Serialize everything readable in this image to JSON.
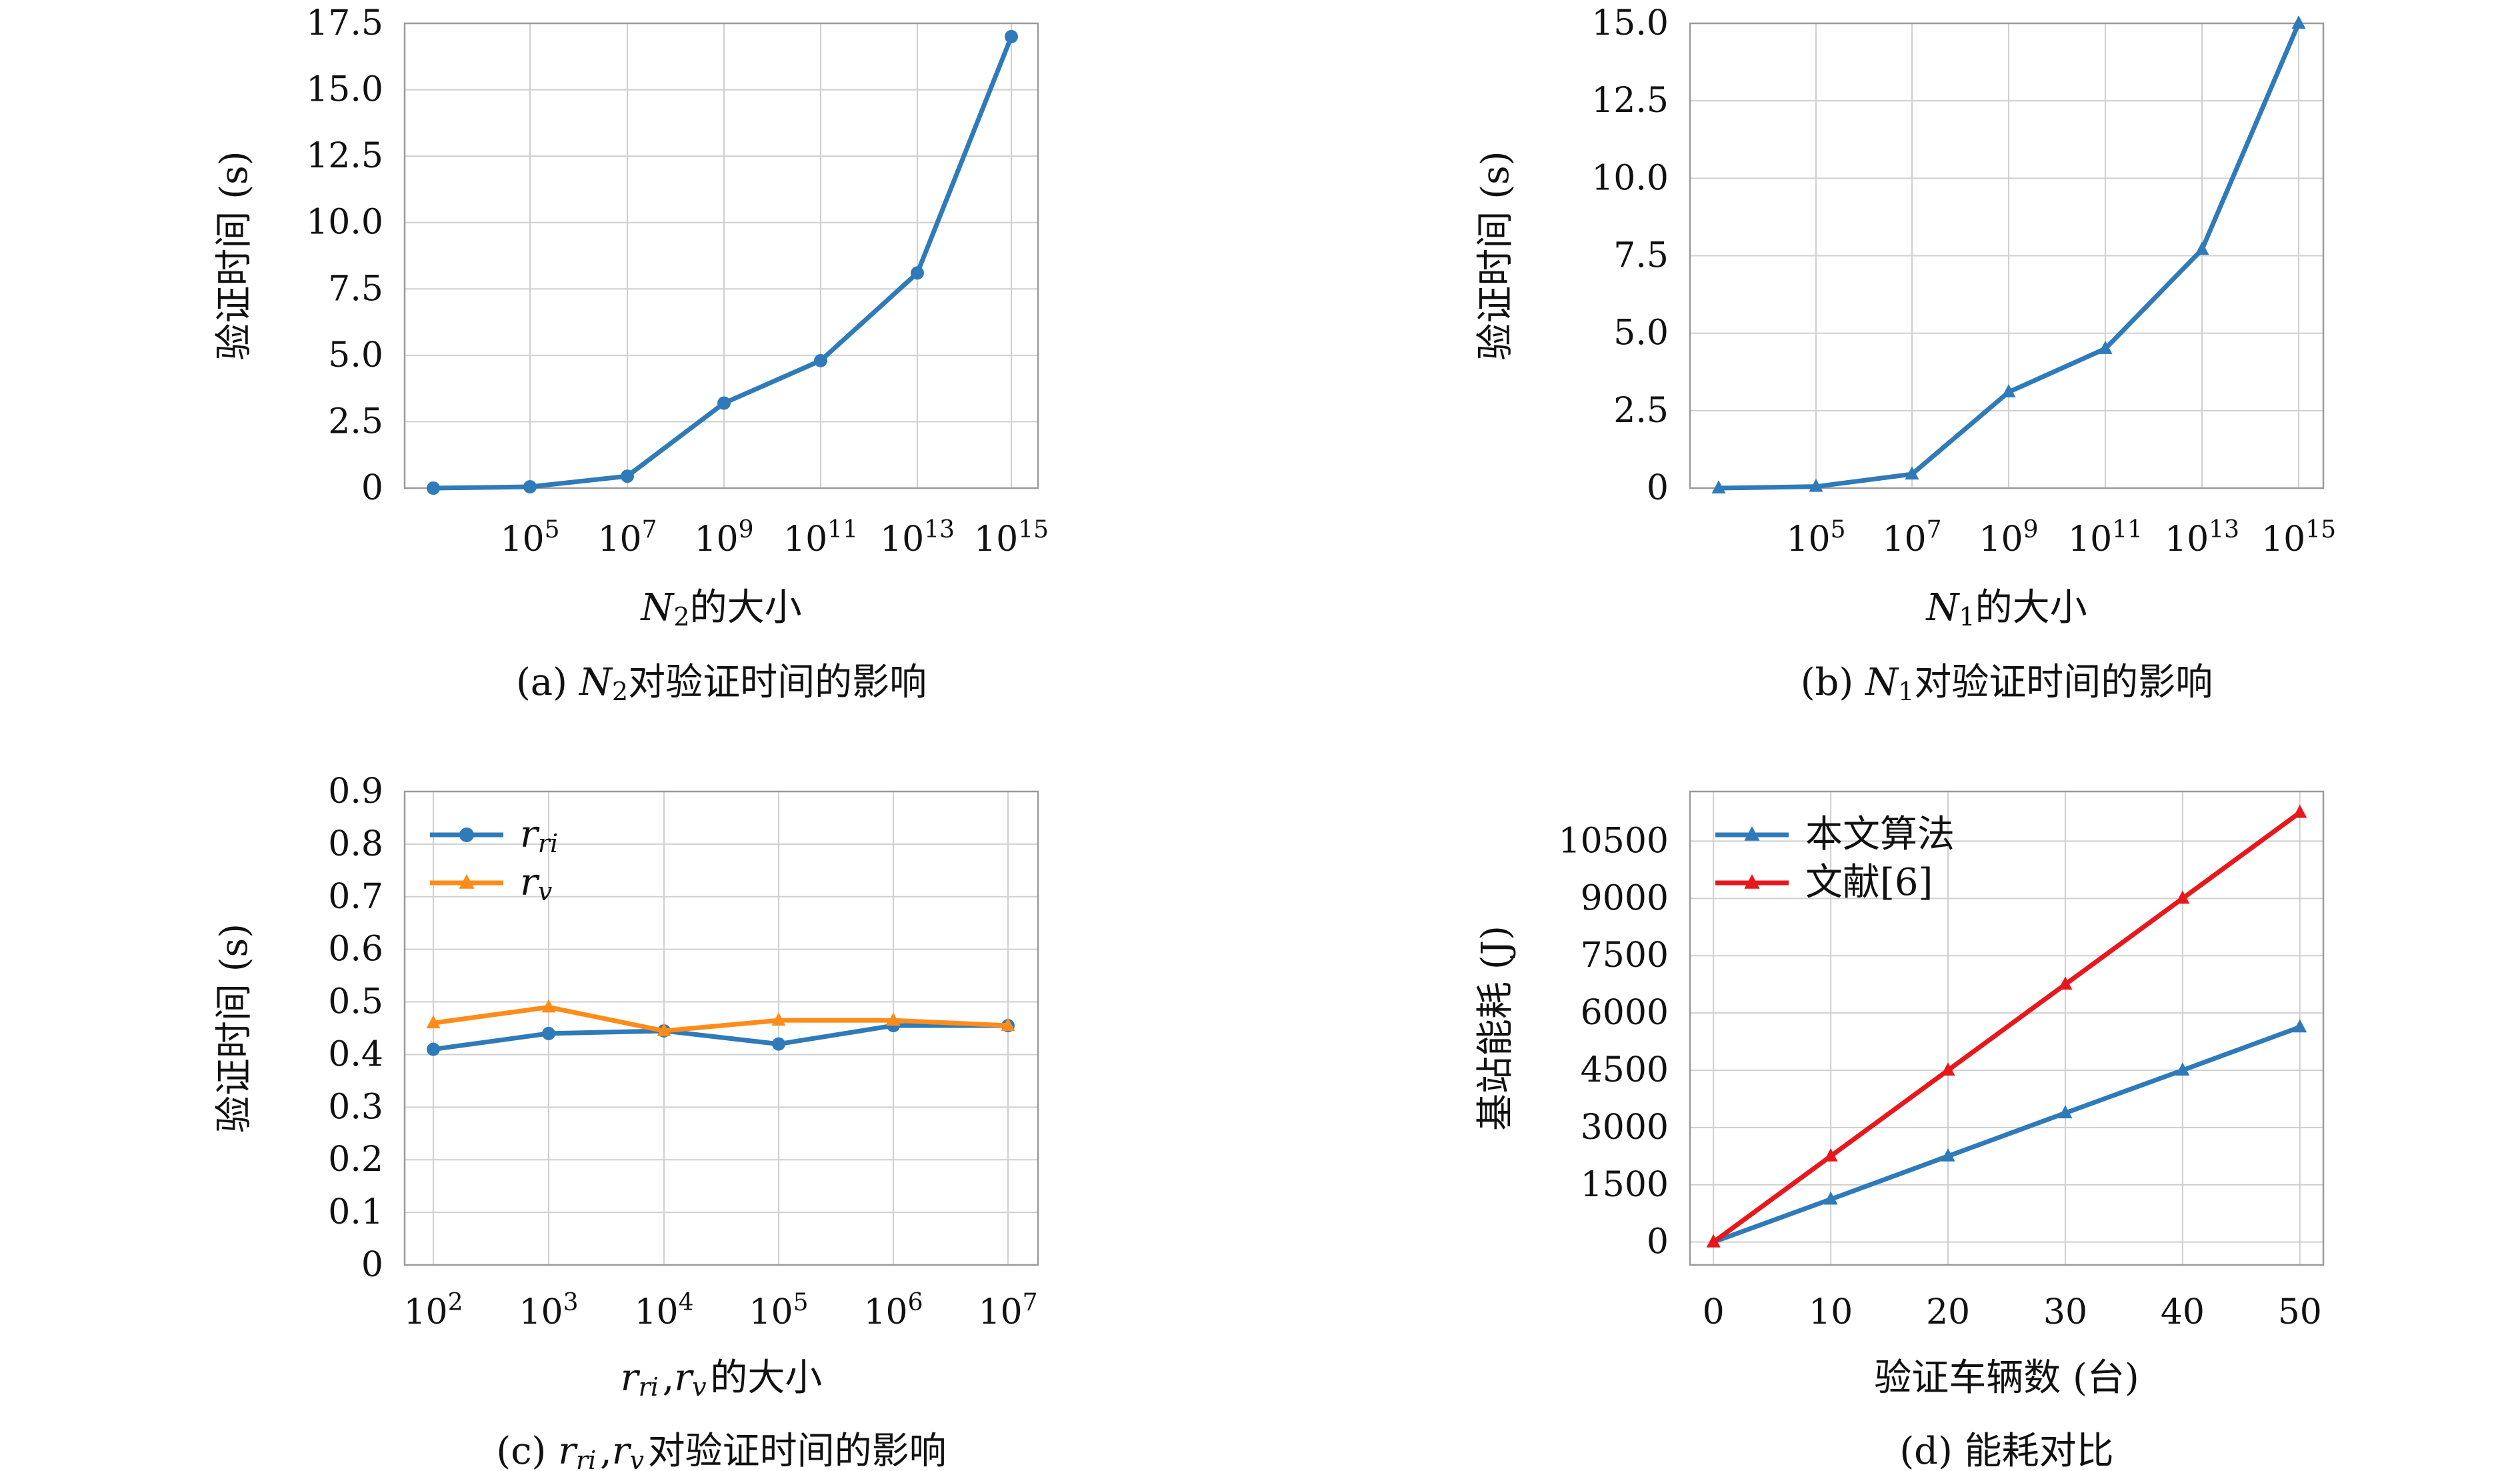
{
  "chart_data": [
    {
      "id": "a",
      "type": "line",
      "caption": "(a) N₂对验证时间的影响",
      "xlabel": "N₂的大小",
      "ylabel": "验证时间 (s)",
      "x_scale": "log",
      "x": [
        "10^3",
        "10^5",
        "10^7",
        "10^9",
        "10^11",
        "10^13",
        "10^15"
      ],
      "x_tick_labels": [
        "10⁵",
        "10⁷",
        "10⁹",
        "10¹¹",
        "10¹³",
        "10¹⁵"
      ],
      "ylim": [
        0,
        17.5
      ],
      "y_ticks": [
        0,
        2.5,
        5.0,
        7.5,
        10.0,
        12.5,
        15.0,
        17.5
      ],
      "y_tick_labels": [
        "0",
        "2.5",
        "5.0",
        "7.5",
        "10.0",
        "12.5",
        "15.0",
        "17.5"
      ],
      "grid": true,
      "series": [
        {
          "values": [
            0.0,
            0.05,
            0.45,
            3.2,
            4.8,
            8.1,
            17.0
          ],
          "color": "#2f7ab8",
          "marker": "circle"
        }
      ]
    },
    {
      "id": "b",
      "type": "line",
      "caption": "(b) N₁对验证时间的影响",
      "xlabel": "N₁的大小",
      "ylabel": "验证时间 (s)",
      "x_scale": "log",
      "x": [
        "10^3",
        "10^5",
        "10^7",
        "10^9",
        "10^11",
        "10^13",
        "10^15"
      ],
      "x_tick_labels": [
        "10⁵",
        "10⁷",
        "10⁹",
        "10¹¹",
        "10¹³",
        "10¹⁵"
      ],
      "ylim": [
        0,
        15.0
      ],
      "y_ticks": [
        0,
        2.5,
        5.0,
        7.5,
        10.0,
        12.5,
        15.0
      ],
      "y_tick_labels": [
        "0",
        "2.5",
        "5.0",
        "7.5",
        "10.0",
        "12.5",
        "15.0"
      ],
      "grid": true,
      "series": [
        {
          "values": [
            0.0,
            0.05,
            0.45,
            3.1,
            4.5,
            7.7,
            15.0
          ],
          "color": "#2f7ab8",
          "marker": "triangle"
        }
      ]
    },
    {
      "id": "c",
      "type": "line",
      "caption": "(c) r_ri,r_v对验证时间的影响",
      "xlabel": "r_ri,r_v的大小",
      "ylabel": "验证时间 (s)",
      "x_scale": "log",
      "x": [
        "10^2",
        "10^3",
        "10^4",
        "10^5",
        "10^6",
        "10^7"
      ],
      "x_tick_labels": [
        "10²",
        "10³",
        "10⁴",
        "10⁵",
        "10⁶",
        "10⁷"
      ],
      "ylim": [
        0,
        0.9
      ],
      "y_ticks": [
        0,
        0.1,
        0.2,
        0.3,
        0.4,
        0.5,
        0.6,
        0.7,
        0.8,
        0.9
      ],
      "y_tick_labels": [
        "0",
        "0.1",
        "0.2",
        "0.3",
        "0.4",
        "0.5",
        "0.6",
        "0.7",
        "0.8",
        "0.9"
      ],
      "grid": true,
      "legend": "top-left",
      "series": [
        {
          "name": "r_ri",
          "values": [
            0.41,
            0.44,
            0.445,
            0.42,
            0.455,
            0.455
          ],
          "color": "#2f7ab8",
          "marker": "circle"
        },
        {
          "name": "r_v",
          "values": [
            0.46,
            0.49,
            0.445,
            0.465,
            0.465,
            0.455
          ],
          "color": "#ff8c1a",
          "marker": "triangle"
        }
      ]
    },
    {
      "id": "d",
      "type": "line",
      "caption": "(d) 能耗对比",
      "xlabel": "验证车辆数 (台)",
      "ylabel": "基站能耗 (J)",
      "x": [
        0,
        10,
        20,
        30,
        40,
        50
      ],
      "x_tick_labels": [
        "0",
        "10",
        "20",
        "30",
        "40",
        "50"
      ],
      "xlim": [
        -2,
        52
      ],
      "ylim": [
        -600,
        11800
      ],
      "y_ticks": [
        0,
        1500,
        3000,
        4500,
        6000,
        7500,
        9000,
        10500
      ],
      "y_tick_labels": [
        "0",
        "1500",
        "3000",
        "4500",
        "6000",
        "7500",
        "9000",
        "10500"
      ],
      "grid": true,
      "legend": "top-left",
      "series": [
        {
          "name": "本文算法",
          "values": [
            0,
            1120,
            2250,
            3380,
            4500,
            5630
          ],
          "color": "#2f7ab8",
          "marker": "triangle"
        },
        {
          "name": "文献[6]",
          "values": [
            0,
            2250,
            4500,
            6750,
            9000,
            11250
          ],
          "color": "#e8171c",
          "marker": "triangle"
        }
      ]
    }
  ]
}
